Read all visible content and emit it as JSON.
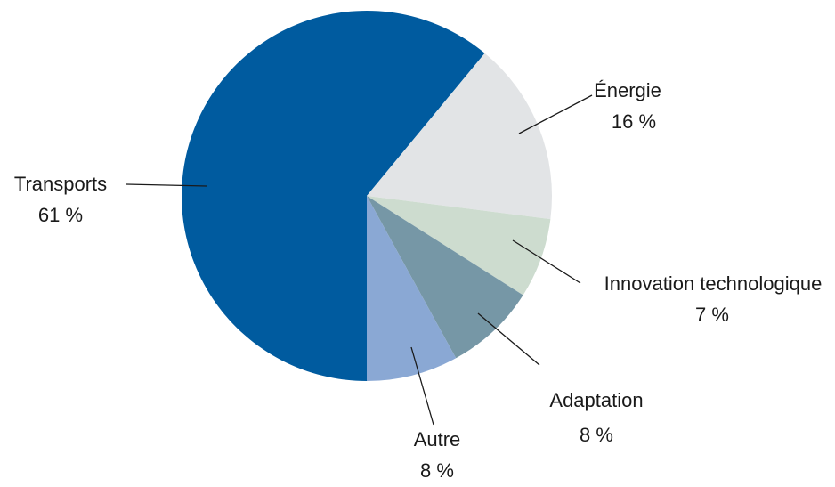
{
  "chart_data": {
    "type": "pie",
    "categories": [
      "Transports",
      "Énergie",
      "Innovation technologique",
      "Adaptation",
      "Autre"
    ],
    "values": [
      61,
      16,
      7,
      8,
      8
    ],
    "value_labels": [
      "61 %",
      "16 %",
      "7 %",
      "8 %",
      "8 %"
    ],
    "colors": [
      "#005b9f",
      "#e2e4e6",
      "#cddccf",
      "#7697a6",
      "#8aa8d4"
    ]
  }
}
